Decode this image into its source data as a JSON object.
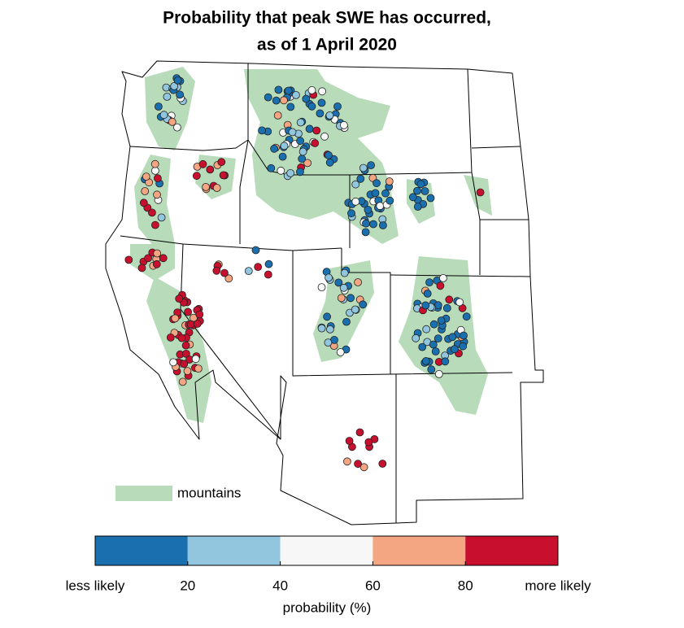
{
  "title_lines": [
    "Probability that peak SWE has occurred,",
    "as of 1 April 2020"
  ],
  "legend": {
    "label": "mountains",
    "color": "#b8dcba"
  },
  "colorbar": {
    "title": "probability (%)",
    "bins": [
      0,
      20,
      40,
      60,
      80,
      100
    ],
    "colors": [
      "#1a6faf",
      "#92c5de",
      "#f7f7f7",
      "#f4a582",
      "#c8102e"
    ],
    "ticks": [
      {
        "value": 0,
        "label": "less likely"
      },
      20,
      40,
      60,
      80,
      {
        "value": 100,
        "label": "more likely"
      }
    ]
  }
}
